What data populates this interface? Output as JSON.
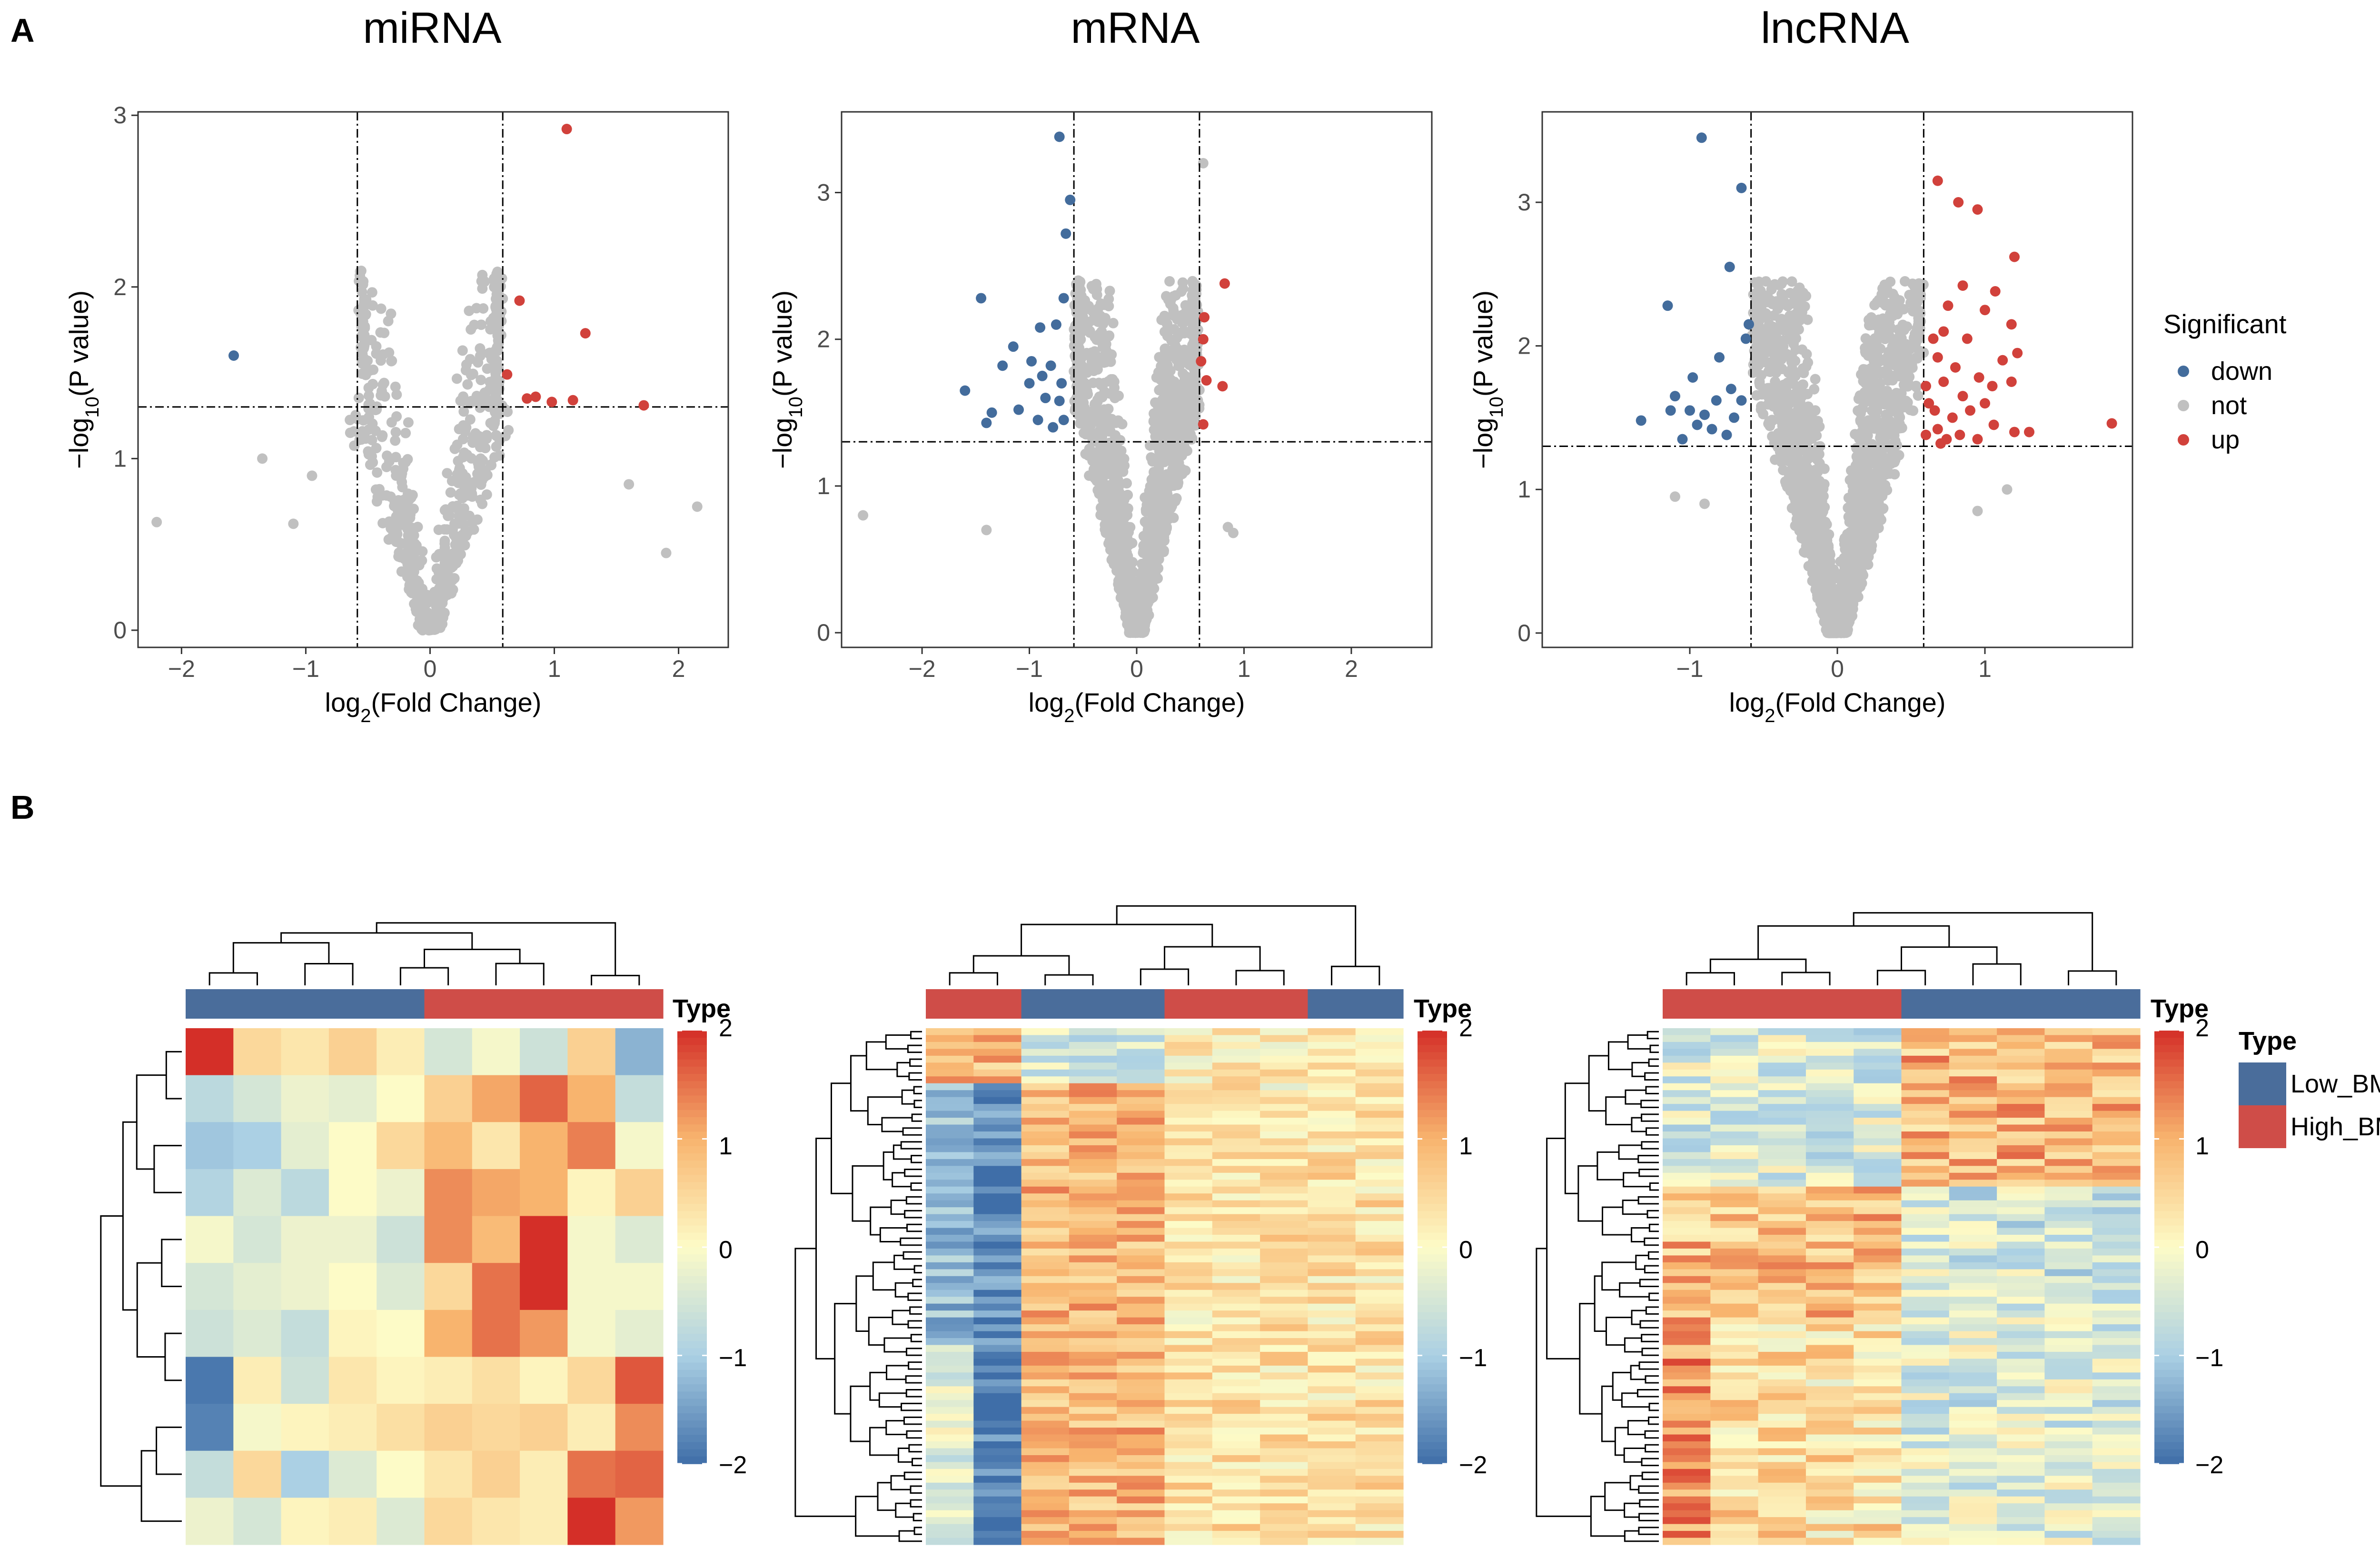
{
  "figure": {
    "panel_labels": [
      "A",
      "B"
    ]
  },
  "colors": {
    "down": "#436c9c",
    "not": "#c0c0c0",
    "up": "#d1413b",
    "low_bmd": "#4a6d9b",
    "high_bmd": "#cf4d48",
    "heat_low": "#3f6ea8",
    "heat_mid": "#fdfbc7",
    "heat_high": "#d42f28"
  },
  "chart_data": [
    {
      "type": "scatter",
      "title": "miRNA",
      "xlabel": "log2(Fold Change)",
      "ylabel": "−log10(P value)",
      "xlim": [
        -2.35,
        2.4
      ],
      "ylim": [
        -0.1,
        3.02
      ],
      "xticks": [
        -2,
        -1,
        0,
        1,
        2
      ],
      "yticks": [
        0,
        1,
        2,
        3
      ],
      "xtick_labels": [
        "−2",
        "−1",
        "0",
        "1",
        "2"
      ],
      "ytick_labels": [
        "0",
        "1",
        "2",
        "3"
      ],
      "vlines": [
        -0.585,
        0.585
      ],
      "hline": 1.301,
      "not_cloud": {
        "n": 700,
        "width_base": 0.04,
        "width_slope": 0.45,
        "ymax": 2.1,
        "seed": 11
      },
      "extra_not": [
        [
          -2.2,
          0.63
        ],
        [
          -1.35,
          1.0
        ],
        [
          -0.95,
          0.9
        ],
        [
          2.15,
          0.72
        ],
        [
          1.9,
          0.45
        ],
        [
          1.6,
          0.85
        ],
        [
          -1.1,
          0.62
        ]
      ],
      "down": [
        [
          -1.58,
          1.6
        ]
      ],
      "up": [
        [
          1.1,
          2.92
        ],
        [
          0.72,
          1.92
        ],
        [
          1.25,
          1.73
        ],
        [
          0.62,
          1.49
        ],
        [
          0.85,
          1.36
        ],
        [
          0.78,
          1.35
        ],
        [
          0.98,
          1.33
        ],
        [
          1.15,
          1.34
        ],
        [
          1.72,
          1.31
        ]
      ]
    },
    {
      "type": "scatter",
      "title": "mRNA",
      "xlabel": "log2(Fold Change)",
      "ylabel": "−log10(P value)",
      "xlim": [
        -2.75,
        2.75
      ],
      "ylim": [
        -0.1,
        3.55
      ],
      "xticks": [
        -2,
        -1,
        0,
        1,
        2
      ],
      "yticks": [
        0,
        1,
        2,
        3
      ],
      "xtick_labels": [
        "−2",
        "−1",
        "0",
        "1",
        "2"
      ],
      "ytick_labels": [
        "0",
        "1",
        "2",
        "3"
      ],
      "vlines": [
        -0.585,
        0.585
      ],
      "hline": 1.301,
      "not_cloud": {
        "n": 1800,
        "width_base": 0.03,
        "width_slope": 0.32,
        "ymax": 2.4,
        "seed": 23
      },
      "extra_not": [
        [
          -2.55,
          0.8
        ],
        [
          0.62,
          3.2
        ],
        [
          0.9,
          0.68
        ],
        [
          -1.4,
          0.7
        ],
        [
          0.85,
          0.72
        ]
      ],
      "down": [
        [
          -0.72,
          3.38
        ],
        [
          -0.62,
          2.95
        ],
        [
          -0.66,
          2.72
        ],
        [
          -1.45,
          2.28
        ],
        [
          -0.68,
          2.28
        ],
        [
          -0.9,
          2.08
        ],
        [
          -0.75,
          2.1
        ],
        [
          -1.15,
          1.95
        ],
        [
          -0.98,
          1.85
        ],
        [
          -1.25,
          1.82
        ],
        [
          -0.8,
          1.82
        ],
        [
          -1.6,
          1.65
        ],
        [
          -1.0,
          1.7
        ],
        [
          -0.7,
          1.7
        ],
        [
          -0.85,
          1.6
        ],
        [
          -1.35,
          1.5
        ],
        [
          -0.92,
          1.45
        ],
        [
          -1.4,
          1.43
        ],
        [
          -0.68,
          1.45
        ],
        [
          -0.78,
          1.4
        ],
        [
          -1.1,
          1.52
        ],
        [
          -0.72,
          1.58
        ],
        [
          -0.88,
          1.75
        ]
      ],
      "up": [
        [
          0.82,
          2.38
        ],
        [
          0.62,
          2.0
        ],
        [
          0.6,
          1.85
        ],
        [
          0.65,
          1.72
        ],
        [
          0.8,
          1.68
        ],
        [
          0.62,
          1.42
        ],
        [
          0.63,
          2.15
        ]
      ]
    },
    {
      "type": "scatter",
      "title": "lncRNA",
      "xlabel": "log2(Fold Change)",
      "ylabel": "−log10(P value)",
      "xlim": [
        -2.0,
        2.0
      ],
      "ylim": [
        -0.1,
        3.63
      ],
      "xticks": [
        -1,
        0,
        1
      ],
      "yticks": [
        0,
        1,
        2,
        3
      ],
      "xtick_labels": [
        "−1",
        "0",
        "1"
      ],
      "ytick_labels": [
        "0",
        "1",
        "2",
        "3"
      ],
      "vlines": [
        -0.585,
        0.585
      ],
      "hline": 1.301,
      "not_cloud": {
        "n": 2000,
        "width_base": 0.03,
        "width_slope": 0.27,
        "ymax": 2.45,
        "seed": 37
      },
      "extra_not": [
        [
          -1.1,
          0.95
        ],
        [
          1.15,
          1.0
        ],
        [
          0.95,
          0.85
        ],
        [
          -0.9,
          0.9
        ]
      ],
      "down": [
        [
          -0.92,
          3.45
        ],
        [
          -0.65,
          3.1
        ],
        [
          -0.73,
          2.55
        ],
        [
          -1.15,
          2.28
        ],
        [
          -0.6,
          2.15
        ],
        [
          -0.62,
          2.05
        ],
        [
          -0.8,
          1.92
        ],
        [
          -0.98,
          1.78
        ],
        [
          -0.72,
          1.7
        ],
        [
          -1.1,
          1.65
        ],
        [
          -0.82,
          1.62
        ],
        [
          -0.65,
          1.62
        ],
        [
          -1.0,
          1.55
        ],
        [
          -1.13,
          1.55
        ],
        [
          -0.9,
          1.52
        ],
        [
          -0.7,
          1.5
        ],
        [
          -1.33,
          1.48
        ],
        [
          -0.85,
          1.42
        ],
        [
          -0.75,
          1.38
        ],
        [
          -1.05,
          1.35
        ],
        [
          -0.95,
          1.45
        ]
      ],
      "up": [
        [
          0.68,
          3.15
        ],
        [
          0.82,
          3.0
        ],
        [
          0.95,
          2.95
        ],
        [
          1.2,
          2.62
        ],
        [
          0.85,
          2.42
        ],
        [
          1.07,
          2.38
        ],
        [
          0.75,
          2.28
        ],
        [
          1.0,
          2.25
        ],
        [
          1.18,
          2.15
        ],
        [
          0.72,
          2.1
        ],
        [
          0.65,
          2.05
        ],
        [
          0.88,
          2.05
        ],
        [
          1.22,
          1.95
        ],
        [
          0.68,
          1.92
        ],
        [
          0.8,
          1.85
        ],
        [
          0.96,
          1.78
        ],
        [
          0.72,
          1.75
        ],
        [
          0.6,
          1.72
        ],
        [
          1.05,
          1.72
        ],
        [
          1.18,
          1.75
        ],
        [
          0.85,
          1.65
        ],
        [
          0.62,
          1.6
        ],
        [
          0.9,
          1.55
        ],
        [
          0.78,
          1.5
        ],
        [
          1.06,
          1.45
        ],
        [
          0.68,
          1.42
        ],
        [
          1.2,
          1.4
        ],
        [
          1.3,
          1.4
        ],
        [
          0.83,
          1.38
        ],
        [
          0.95,
          1.35
        ],
        [
          1.86,
          1.46
        ],
        [
          0.74,
          1.35
        ],
        [
          0.6,
          1.38
        ],
        [
          1.0,
          1.6
        ],
        [
          1.12,
          1.9
        ],
        [
          0.66,
          1.55
        ],
        [
          0.7,
          1.32
        ]
      ]
    },
    {
      "type": "heatmap",
      "title": "miRNA",
      "n_rows": 11,
      "n_cols": 10,
      "column_types": [
        "Low_BMD",
        "Low_BMD",
        "Low_BMD",
        "Low_BMD",
        "Low_BMD",
        "High_BMD",
        "High_BMD",
        "High_BMD",
        "High_BMD",
        "High_BMD"
      ],
      "values": [
        [
          2.0,
          0.5,
          0.3,
          0.6,
          0.2,
          -0.5,
          -0.1,
          -0.6,
          0.6,
          -1.3
        ],
        [
          -0.8,
          -0.5,
          -0.2,
          -0.3,
          0.0,
          0.6,
          1.1,
          1.6,
          1.0,
          -0.7
        ],
        [
          -1.1,
          -1.0,
          -0.3,
          0.0,
          0.5,
          0.9,
          0.3,
          1.0,
          1.4,
          -0.1
        ],
        [
          -0.9,
          -0.4,
          -0.8,
          0.0,
          -0.2,
          1.3,
          1.1,
          1.0,
          0.1,
          0.6
        ],
        [
          -0.1,
          -0.5,
          -0.2,
          -0.2,
          -0.6,
          1.3,
          0.9,
          2.0,
          -0.1,
          -0.4
        ],
        [
          -0.5,
          -0.3,
          -0.2,
          0.0,
          -0.4,
          0.5,
          1.5,
          2.0,
          -0.1,
          -0.1
        ],
        [
          -0.6,
          -0.4,
          -0.7,
          0.1,
          0.0,
          1.0,
          1.5,
          1.2,
          -0.1,
          -0.3
        ],
        [
          -1.9,
          0.2,
          -0.6,
          0.3,
          0.1,
          0.2,
          0.4,
          0.1,
          0.5,
          1.7
        ],
        [
          -1.8,
          -0.1,
          0.1,
          0.2,
          0.4,
          0.6,
          0.5,
          0.6,
          0.2,
          1.3
        ],
        [
          -0.7,
          0.5,
          -1.0,
          -0.4,
          0.0,
          0.3,
          0.6,
          0.2,
          1.5,
          1.6
        ],
        [
          -0.2,
          -0.5,
          0.1,
          0.2,
          -0.4,
          0.5,
          0.3,
          0.2,
          2.0,
          1.2
        ]
      ],
      "legend_title": "Type",
      "colorbar_ticks": [
        "2",
        "1",
        "0",
        "−1",
        "−2"
      ]
    },
    {
      "type": "heatmap",
      "title": "mRNA",
      "n_rows": 75,
      "n_cols": 10,
      "column_types": [
        "High_BMD",
        "High_BMD",
        "Low_BMD",
        "Low_BMD",
        "Low_BMD",
        "High_BMD",
        "High_BMD",
        "High_BMD",
        "Low_BMD",
        "Low_BMD"
      ],
      "generator": {
        "seed": 101,
        "noise": 0.55,
        "block_pattern": "mrna"
      },
      "legend_title": "Type",
      "colorbar_ticks": [
        "2",
        "1",
        "0",
        "−1",
        "−2"
      ]
    },
    {
      "type": "heatmap",
      "title": "lncRNA",
      "n_rows": 75,
      "n_cols": 10,
      "column_types": [
        "High_BMD",
        "High_BMD",
        "High_BMD",
        "High_BMD",
        "High_BMD",
        "Low_BMD",
        "Low_BMD",
        "Low_BMD",
        "Low_BMD",
        "Low_BMD"
      ],
      "generator": {
        "seed": 202,
        "noise": 0.7,
        "block_pattern": "lncrna"
      },
      "legend_title": "Type",
      "colorbar_ticks": [
        "2",
        "1",
        "0",
        "−1",
        "−2"
      ]
    }
  ],
  "legends": {
    "significant": {
      "title": "Significant",
      "items": [
        "down",
        "not",
        "up"
      ]
    },
    "type": {
      "title": "Type",
      "items": [
        "Low_BMD",
        "High_BMD"
      ]
    }
  }
}
